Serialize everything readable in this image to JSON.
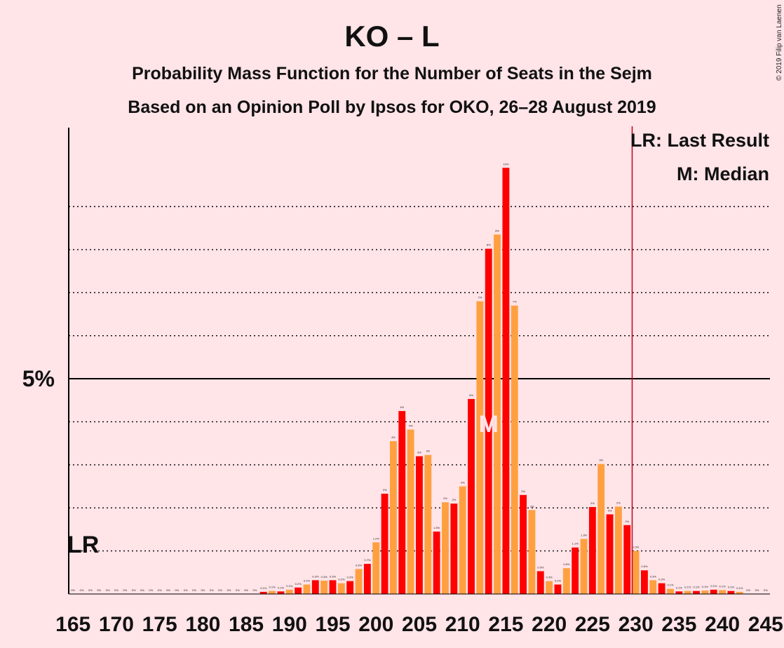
{
  "title": "KO – L",
  "subtitle1": "Probability Mass Function for the Number of Seats in the Sejm",
  "subtitle2": "Based on an Opinion Poll by Ipsos for OKO, 26–28 August 2019",
  "copyright": "© 2019 Filip van Laenen",
  "legend": {
    "last_result": "LR: Last Result",
    "median": "M: Median"
  },
  "colors": {
    "background": "#FFE4E8",
    "bar_dark": "#FF0000",
    "bar_light": "#FFA040",
    "last_result_line": "#C00020",
    "axis": "#000000"
  },
  "chart_data": {
    "type": "bar",
    "x": [
      165,
      166,
      167,
      168,
      169,
      170,
      171,
      172,
      173,
      174,
      175,
      176,
      177,
      178,
      179,
      180,
      181,
      182,
      183,
      184,
      185,
      186,
      187,
      188,
      189,
      190,
      191,
      192,
      193,
      194,
      195,
      196,
      197,
      198,
      199,
      200,
      201,
      202,
      203,
      204,
      205,
      206,
      207,
      208,
      209,
      210,
      211,
      212,
      213,
      214,
      215,
      216,
      217,
      218,
      219,
      220,
      221,
      222,
      223,
      224,
      225,
      226,
      227,
      228,
      229,
      230,
      231,
      232,
      233,
      234,
      235,
      236,
      237,
      238,
      239,
      240,
      241,
      242,
      243,
      244,
      245
    ],
    "values": [
      0,
      0,
      0,
      0,
      0,
      0,
      0,
      0,
      0,
      0,
      0,
      0,
      0,
      0,
      0,
      0,
      0,
      0,
      0,
      0,
      0,
      0,
      0.05,
      0.07,
      0.06,
      0.1,
      0.15,
      0.22,
      0.32,
      0.31,
      0.32,
      0.25,
      0.3,
      0.58,
      0.7,
      1.2,
      2.33,
      3.55,
      4.25,
      3.82,
      3.2,
      3.23,
      1.45,
      2.13,
      2.1,
      2.5,
      4.53,
      6.8,
      8.02,
      8.35,
      9.9,
      6.7,
      2.3,
      1.95,
      0.53,
      0.3,
      0.22,
      0.6,
      1.08,
      1.28,
      2.02,
      3.02,
      1.85,
      2.03,
      1.6,
      1.0,
      0.55,
      0.32,
      0.25,
      0.12,
      0.06,
      0.07,
      0.07,
      0.08,
      0.1,
      0.09,
      0.07,
      0.05,
      0,
      0,
      0
    ],
    "labels": [
      "0%",
      "0%",
      "0%",
      "0%",
      "0%",
      "0%",
      "0%",
      "0%",
      "0%",
      "0%",
      "0%",
      "0%",
      "0%",
      "0%",
      "0%",
      "0%",
      "0%",
      "0%",
      "0%",
      "0%",
      "0%",
      "0%",
      "0.1%",
      "0.1%",
      "0.1%",
      "0.1%",
      "0.2%",
      "0.2%",
      "0.3%",
      "0.3%",
      "0.3%",
      "0.2%",
      "0.3%",
      "0.6%",
      "0.7%",
      "1.2%",
      "2%",
      "4%",
      "4%",
      "4%",
      "3%",
      "3%",
      "1.5%",
      "2%",
      "2%",
      "2%",
      "5%",
      "7%",
      "8%",
      "8%",
      "10%",
      "7%",
      "2%",
      "2%",
      "0.5%",
      "0.3%",
      "0.2%",
      "0.6%",
      "1.1%",
      "1.3%",
      "2%",
      "3%",
      "2%",
      "2%",
      "2%",
      "1.0%",
      "0.6%",
      "0.3%",
      "0.2%",
      "0.1%",
      "0.1%",
      "0.1%",
      "0.1%",
      "0.1%",
      "0.1%",
      "0.1%",
      "0.1%",
      "0.1%",
      "0%",
      "0%",
      "0%"
    ],
    "x_tick_labels": [
      "165",
      "170",
      "175",
      "180",
      "185",
      "190",
      "195",
      "200",
      "205",
      "210",
      "215",
      "220",
      "225",
      "230",
      "235",
      "240",
      "245"
    ],
    "y_tick_label": "5%",
    "ylim": [
      0,
      10.8
    ],
    "gridlines": [
      1,
      2,
      3,
      4,
      6,
      7,
      8,
      9
    ],
    "solid_gridline": 5,
    "last_result_seat": 230,
    "last_result_label": "LR",
    "median_seat": 213,
    "median_label": "M"
  }
}
